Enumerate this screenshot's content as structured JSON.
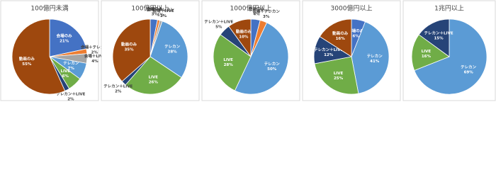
{
  "chart_data": [
    {
      "type": "pie",
      "title": "100億円未満",
      "categories": [
        "会場のみ",
        "会場＋テレカン",
        "会場＋LIVE",
        "テレカン",
        "LIVE",
        "テレカン＋LIVE",
        "動画のみ"
      ],
      "values": [
        21,
        2,
        4,
        7,
        6,
        2,
        55
      ],
      "value_labels": [
        "21%",
        "2%",
        "4%",
        "7%",
        "6%",
        "2%",
        "55%"
      ],
      "colors": [
        "#4472c4",
        "#ed7d31",
        "#a5a5a5",
        "#5b9bd5",
        "#70ad47",
        "#264478",
        "#9e480e"
      ]
    },
    {
      "type": "pie",
      "title": "100億円以上",
      "categories": [
        "会場のみ",
        "会場＋テレカン",
        "会場＋LIVE",
        "テレカン",
        "LIVE",
        "テレカン＋LIVE",
        "動画のみ"
      ],
      "values": [
        3,
        1,
        1,
        28,
        26,
        2,
        35
      ],
      "value_labels": [
        "3%",
        "1%",
        "1%",
        "28%",
        "26%",
        "2%",
        "35%"
      ],
      "colors": [
        "#4472c4",
        "#ed7d31",
        "#a5a5a5",
        "#5b9bd5",
        "#70ad47",
        "#264478",
        "#9e480e"
      ]
    },
    {
      "type": "pie",
      "title": "1000億円以上",
      "categories": [
        "会場のみ",
        "会場＋テレカン",
        "テレカン",
        "LIVE",
        "テレカン＋LIVE",
        "動画のみ"
      ],
      "values": [
        4,
        3,
        50,
        28,
        5,
        10
      ],
      "value_labels": [
        "4%",
        "3%",
        "50%",
        "28%",
        "5%",
        "10%"
      ],
      "colors": [
        "#4472c4",
        "#ed7d31",
        "#5b9bd5",
        "#70ad47",
        "#264478",
        "#9e480e"
      ]
    },
    {
      "type": "pie",
      "title": "3000億円以上",
      "categories": [
        "会場のみ",
        "テレカン",
        "LIVE",
        "テレカン＋LIVE",
        "動画のみ"
      ],
      "values": [
        6,
        41,
        25,
        12,
        16
      ],
      "value_labels": [
        "6%",
        "41%",
        "25%",
        "12%",
        "16%"
      ],
      "colors": [
        "#4472c4",
        "#5b9bd5",
        "#70ad47",
        "#264478",
        "#9e480e"
      ]
    },
    {
      "type": "pie",
      "title": "1兆円以上",
      "categories": [
        "テレカン",
        "LIVE",
        "テレカン＋LIVE"
      ],
      "values": [
        69,
        16,
        15
      ],
      "value_labels": [
        "69%",
        "16%",
        "15%"
      ],
      "colors": [
        "#5b9bd5",
        "#70ad47",
        "#264478"
      ]
    }
  ]
}
